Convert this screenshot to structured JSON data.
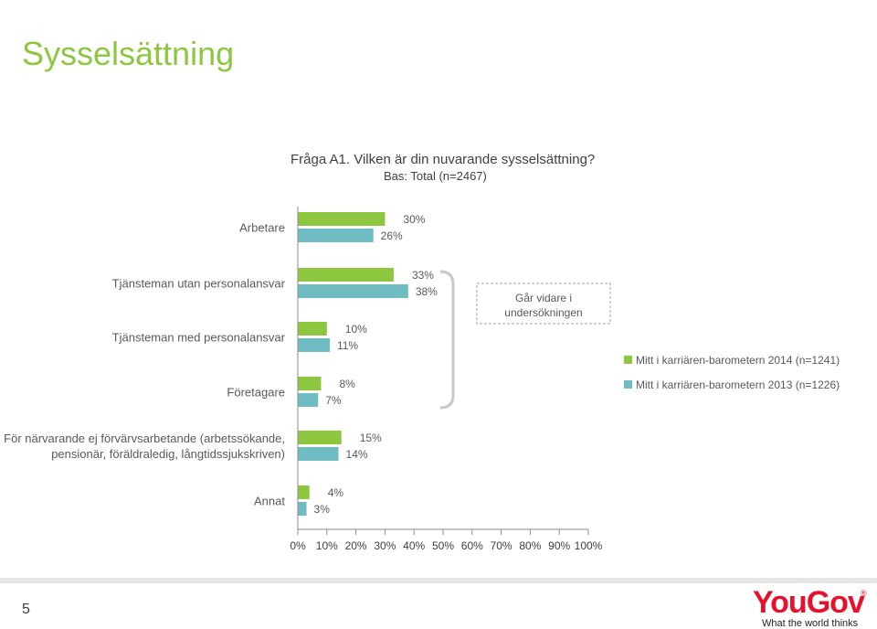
{
  "slide": {
    "title": "Sysselsättning",
    "page_number": "5"
  },
  "logo": {
    "word": "YouGov",
    "reg": "®",
    "tagline": "What the world thinks"
  },
  "annotation": {
    "text_line1": "Går vidare i",
    "text_line2": "undersökningen"
  },
  "colors": {
    "accent_title": "#8dc63f",
    "series_2014": "#8dc63f",
    "series_2013": "#6fbcc2",
    "bracket": "#c8c8c8",
    "brand_red": "#e8112d"
  },
  "chart_data": {
    "type": "bar",
    "orientation": "horizontal",
    "title": "Fråga A1. Vilken är din nuvarande sysselsättning?",
    "subtitle": "Bas: Total (n=2467)",
    "categories": [
      "Arbetare",
      "Tjänsteman utan personalansvar",
      "Tjänsteman med personalansvar",
      "Företagare",
      "För närvarande ej förvärvsarbetande (arbetssökande, pensionär, föräldraledig, långtidssjukskriven)",
      "Annat"
    ],
    "category_lines": [
      [
        "Arbetare"
      ],
      [
        "Tjänsteman utan personalansvar"
      ],
      [
        "Tjänsteman med personalansvar"
      ],
      [
        "Företagare"
      ],
      [
        "För närvarande ej förvärvsarbetande (arbetssökande,",
        "pensionär, föräldraledig, långtidssjukskriven)"
      ],
      [
        "Annat"
      ]
    ],
    "series": [
      {
        "name": "Mitt i karriären-barometern 2014 (n=1241)",
        "values": [
          30,
          33,
          10,
          8,
          15,
          4
        ],
        "labels": [
          "30%",
          "33%",
          "10%",
          "8%",
          "15%",
          "4%"
        ]
      },
      {
        "name": "Mitt i karriären-barometern 2013 (n=1226)",
        "values": [
          26,
          38,
          11,
          7,
          14,
          3
        ],
        "labels": [
          "26%",
          "38%",
          "11%",
          "7%",
          "14%",
          "3%"
        ]
      }
    ],
    "xlim": [
      0,
      100
    ],
    "xticks": [
      "0%",
      "10%",
      "20%",
      "30%",
      "40%",
      "50%",
      "60%",
      "70%",
      "80%",
      "90%",
      "100%"
    ],
    "legend_position": "right",
    "grid": false
  }
}
